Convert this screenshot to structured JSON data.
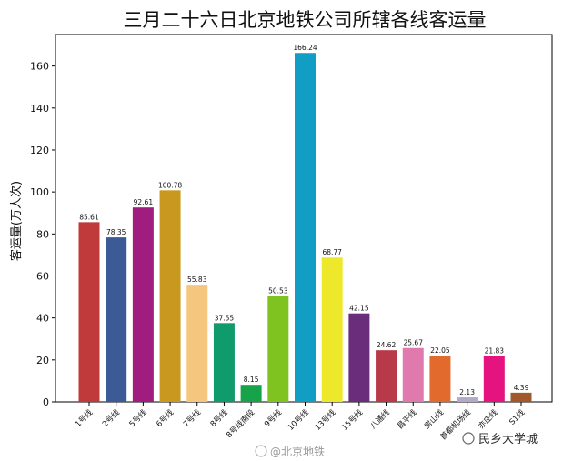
{
  "chart_data": {
    "type": "bar",
    "title": "三月二十六日北京地铁公司所辖各线客运量",
    "ylabel": "客运量(万人次)",
    "xlabel": "",
    "ylim": [
      0,
      175
    ],
    "yticks": [
      0,
      20,
      40,
      60,
      80,
      100,
      120,
      140,
      160
    ],
    "grid": false,
    "categories": [
      "1号线",
      "2号线",
      "5号线",
      "6号线",
      "7号线",
      "8号线",
      "8号线南段",
      "9号线",
      "10号线",
      "13号线",
      "15号线",
      "八通线",
      "昌平线",
      "房山线",
      "首都机场线",
      "亦庄线",
      "S1线"
    ],
    "values": [
      85.61,
      78.35,
      92.61,
      100.78,
      55.83,
      37.55,
      8.15,
      50.53,
      166.24,
      68.77,
      42.15,
      24.62,
      25.67,
      22.05,
      2.13,
      21.83,
      4.39
    ],
    "value_labels": [
      "85.61",
      "78.35",
      "92.61",
      "100.78",
      "55.83",
      "37.55",
      "8.15",
      "50.53",
      "166.24",
      "68.77",
      "42.15",
      "24.62",
      "25.67",
      "22.05",
      "2.13",
      "21.83",
      "4.39"
    ],
    "colors": [
      "#c0393b",
      "#3b5a96",
      "#a01c7e",
      "#c9991f",
      "#f5c77e",
      "#0f9b6b",
      "#16a34a",
      "#7ec31f",
      "#129ec4",
      "#eee82a",
      "#6a2d7c",
      "#b83a48",
      "#e07aae",
      "#e16a2c",
      "#b4a8cc",
      "#e4137f",
      "#a0582c"
    ]
  },
  "watermarks": {
    "left": "@北京地铁",
    "right": "民乡大学城"
  }
}
